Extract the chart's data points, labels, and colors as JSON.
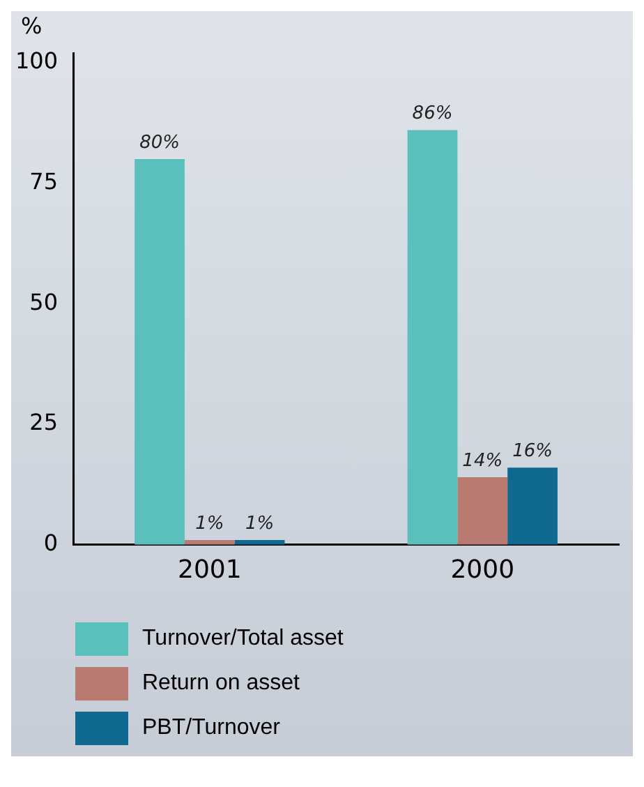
{
  "chart_data": {
    "type": "bar",
    "ylabel": "%",
    "categories": [
      "2001",
      "2000"
    ],
    "series": [
      {
        "name": "Turnover/Total asset",
        "color": "#5bbfbc",
        "values": [
          80,
          86
        ],
        "value_labels": [
          "80%",
          "86%"
        ]
      },
      {
        "name": "Return on asset",
        "color": "#b97a72",
        "values": [
          1,
          14
        ],
        "value_labels": [
          "1%",
          "14%"
        ]
      },
      {
        "name": "PBT/Turnover",
        "color": "#0e6890",
        "values": [
          1,
          16
        ],
        "value_labels": [
          "1%",
          "16%"
        ]
      }
    ],
    "ylim": [
      0,
      102
    ],
    "yticks": [
      0,
      25,
      50,
      75,
      100
    ],
    "grid": false,
    "legend": "bottom"
  }
}
